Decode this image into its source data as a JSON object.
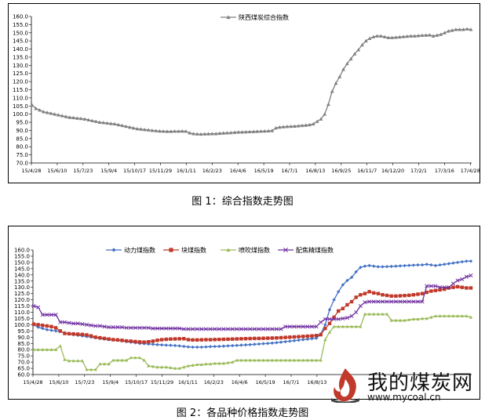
{
  "captions": {
    "fig1": "图 1：综合指数走势图",
    "fig2": "图 2：各品种价格指数走势图"
  },
  "logo": {
    "title": "我的煤炭网",
    "url": "www.mycoal.cn"
  },
  "chart_data": [
    {
      "type": "line",
      "title": "",
      "legend": "top-center",
      "grid": false,
      "ylim": [
        70,
        160
      ],
      "yticks": [
        "70.0",
        "75.0",
        "80.0",
        "85.0",
        "90.0",
        "95.0",
        "100.0",
        "105.0",
        "110.0",
        "115.0",
        "120.0",
        "125.0",
        "130.0",
        "135.0",
        "140.0",
        "145.0",
        "150.0",
        "155.0",
        "160.0"
      ],
      "xticks": [
        "15/4/28",
        "15/6/10",
        "15/7/23",
        "15/9/4",
        "15/10/17",
        "15/11/29",
        "16/1/11",
        "16/2/23",
        "16/4/6",
        "16/5/19",
        "16/7/1",
        "16/8/13",
        "16/9/25",
        "16/11/7",
        "16/12/20",
        "17/2/1",
        "17/3/16",
        "17/4/28"
      ],
      "series": [
        {
          "name": "陕西煤炭综合指数",
          "color": "#7f7f7f",
          "marker": "triangle",
          "values": [
            105.5,
            103.5,
            102.5,
            101.5,
            101.0,
            100.5,
            100.0,
            99.5,
            99.0,
            98.5,
            98.0,
            97.8,
            97.5,
            97.3,
            97.0,
            96.5,
            96.0,
            95.5,
            95.0,
            94.8,
            94.5,
            94.2,
            94.0,
            93.5,
            93.0,
            92.5,
            92.0,
            91.5,
            91.0,
            90.8,
            90.5,
            90.3,
            90.0,
            89.8,
            89.6,
            89.5,
            89.4,
            89.4,
            89.5,
            89.5,
            89.6,
            89.5,
            88.5,
            88.0,
            87.8,
            87.7,
            87.8,
            87.9,
            88.0,
            88.0,
            88.2,
            88.4,
            88.5,
            88.6,
            88.8,
            89.0,
            89.0,
            89.1,
            89.2,
            89.3,
            89.4,
            89.5,
            89.6,
            89.7,
            89.9,
            91.5,
            92.0,
            92.2,
            92.4,
            92.5,
            92.6,
            92.8,
            93.0,
            93.2,
            93.5,
            94.0,
            95.5,
            97.0,
            100.0,
            106.0,
            114.0,
            119.0,
            123.0,
            127.5,
            131.0,
            134.0,
            137.0,
            139.5,
            142.5,
            145.0,
            146.5,
            147.5,
            148.0,
            148.0,
            147.5,
            147.0,
            147.0,
            147.2,
            147.4,
            147.6,
            147.8,
            148.0,
            148.0,
            148.2,
            148.4,
            148.5,
            148.6,
            148.0,
            148.5,
            149.0,
            150.0,
            151.0,
            151.5,
            152.0,
            152.0,
            152.0,
            152.3,
            152.0
          ]
        }
      ]
    },
    {
      "type": "line",
      "title": "",
      "legend": "top-center",
      "grid": false,
      "ylim": [
        60,
        160
      ],
      "yticks": [
        "60.0",
        "65.0",
        "70.0",
        "75.0",
        "80.0",
        "85.0",
        "90.0",
        "95.0",
        "100.0",
        "105.0",
        "110.0",
        "115.0",
        "120.0",
        "125.0",
        "130.0",
        "135.0",
        "140.0",
        "145.0",
        "150.0",
        "155.0",
        "160.0"
      ],
      "xticks": [
        "15/4/28",
        "15/6/10",
        "15/7/23",
        "15/9/4",
        "15/10/17",
        "15/11/29",
        "16/1/11",
        "16/2/23",
        "16/4/6",
        "16/5/19",
        "16/7/1",
        "16/8/13"
      ],
      "series": [
        {
          "name": "动力煤指数",
          "color": "#4472c4",
          "marker": "diamond",
          "values": [
            100.0,
            98.0,
            97.0,
            96.0,
            95.5,
            95.0,
            94.5,
            93.5,
            92.5,
            92.0,
            91.5,
            91.0,
            90.5,
            90.0,
            89.5,
            89.0,
            88.5,
            88.0,
            87.8,
            87.5,
            87.0,
            86.5,
            86.0,
            85.5,
            85.0,
            84.8,
            84.5,
            84.3,
            84.0,
            83.8,
            83.6,
            83.5,
            83.3,
            83.0,
            82.6,
            82.2,
            82.0,
            82.0,
            82.0,
            82.2,
            82.4,
            82.5,
            82.6,
            82.8,
            83.0,
            83.2,
            83.4,
            83.6,
            83.8,
            84.0,
            84.3,
            84.5,
            84.8,
            85.0,
            85.3,
            85.6,
            86.0,
            86.4,
            86.8,
            87.2,
            87.6,
            88.0,
            88.4,
            88.8,
            89.2,
            92.5,
            100.0,
            112.0,
            120.0,
            126.5,
            132.0,
            135.5,
            138.0,
            142.5,
            146.0,
            147.0,
            147.5,
            147.0,
            146.5,
            146.5,
            146.6,
            146.8,
            147.0,
            147.2,
            147.4,
            147.6,
            147.8,
            148.0,
            148.0,
            148.5,
            148.0,
            147.5,
            148.0,
            148.5,
            149.0,
            149.5,
            150.0,
            150.5,
            151.0,
            151.0
          ]
        },
        {
          "name": "块煤指数",
          "color": "#c0392b",
          "marker": "square",
          "values": [
            100.5,
            100.0,
            99.5,
            99.0,
            98.5,
            97.5,
            95.0,
            93.0,
            92.8,
            92.6,
            92.4,
            92.2,
            91.8,
            91.0,
            90.0,
            89.5,
            89.0,
            88.5,
            88.0,
            87.8,
            87.5,
            87.0,
            86.8,
            86.5,
            86.2,
            86.0,
            86.3,
            86.8,
            87.5,
            88.0,
            88.3,
            88.5,
            88.6,
            88.7,
            88.8,
            88.0,
            87.8,
            87.8,
            87.9,
            88.0,
            88.0,
            88.1,
            88.2,
            88.3,
            88.4,
            88.5,
            88.6,
            88.7,
            88.8,
            88.9,
            89.0,
            89.0,
            89.1,
            89.2,
            89.3,
            89.4,
            89.6,
            89.8,
            90.0,
            90.2,
            90.4,
            90.6,
            90.8,
            91.0,
            91.3,
            92.0,
            97.0,
            101.0,
            106.0,
            111.0,
            113.0,
            116.0,
            118.5,
            122.0,
            124.0,
            125.0,
            126.5,
            125.5,
            125.0,
            124.0,
            123.5,
            123.0,
            123.0,
            123.2,
            123.4,
            123.6,
            124.0,
            124.5,
            125.0,
            126.0,
            127.0,
            127.5,
            128.0,
            128.5,
            129.5,
            130.0,
            130.5,
            130.0,
            129.5,
            129.5
          ]
        },
        {
          "name": "喷吹煤指数",
          "color": "#9bbb59",
          "marker": "triangle",
          "values": [
            80.0,
            80.0,
            80.0,
            80.0,
            80.0,
            80.0,
            83.0,
            72.0,
            71.0,
            71.0,
            71.0,
            71.0,
            64.0,
            64.0,
            64.0,
            68.5,
            68.5,
            68.5,
            71.5,
            71.5,
            71.5,
            71.5,
            73.5,
            73.5,
            73.5,
            71.5,
            67.0,
            66.5,
            66.0,
            66.0,
            66.0,
            65.5,
            65.0,
            65.0,
            66.0,
            67.0,
            67.5,
            68.0,
            68.0,
            68.5,
            68.5,
            69.0,
            69.0,
            69.0,
            69.5,
            70.0,
            71.5,
            71.5,
            71.5,
            71.5,
            71.5,
            71.5,
            71.5,
            71.5,
            71.5,
            71.5,
            71.5,
            71.5,
            71.5,
            71.5,
            71.5,
            71.5,
            71.5,
            71.5,
            71.5,
            71.5,
            88.0,
            94.0,
            98.5,
            98.5,
            98.5,
            98.5,
            98.5,
            98.5,
            98.5,
            108.5,
            108.5,
            108.5,
            108.5,
            108.5,
            108.5,
            103.5,
            103.5,
            103.5,
            103.5,
            104.0,
            104.5,
            104.5,
            105.0,
            105.0,
            106.0,
            107.0,
            107.0,
            107.0,
            107.0,
            107.0,
            107.0,
            107.0,
            107.0,
            106.0
          ]
        },
        {
          "name": "配焦精煤指数",
          "color": "#7030a0",
          "marker": "x",
          "values": [
            115.0,
            114.0,
            108.0,
            108.0,
            108.0,
            108.0,
            102.0,
            102.0,
            101.5,
            101.0,
            101.0,
            100.5,
            100.0,
            99.5,
            99.0,
            99.0,
            98.5,
            98.0,
            98.0,
            98.0,
            98.0,
            97.5,
            97.5,
            97.5,
            97.5,
            97.5,
            97.5,
            97.0,
            97.0,
            97.0,
            97.0,
            97.0,
            97.0,
            97.0,
            96.5,
            96.5,
            96.5,
            96.5,
            96.5,
            96.5,
            96.5,
            96.5,
            96.5,
            96.5,
            96.5,
            96.5,
            96.5,
            96.5,
            96.5,
            96.5,
            96.5,
            96.5,
            96.5,
            96.5,
            96.5,
            96.5,
            96.5,
            98.5,
            98.5,
            98.5,
            98.5,
            98.5,
            98.5,
            98.5,
            98.5,
            102.0,
            104.5,
            104.5,
            104.5,
            104.5,
            105.0,
            105.5,
            107.0,
            110.0,
            115.0,
            118.0,
            118.5,
            118.5,
            118.5,
            118.5,
            118.5,
            118.5,
            118.5,
            118.5,
            118.5,
            118.5,
            118.5,
            118.5,
            118.5,
            131.0,
            131.0,
            131.0,
            130.0,
            130.0,
            130.0,
            133.0,
            135.5,
            136.5,
            138.5,
            139.5
          ]
        }
      ]
    }
  ]
}
